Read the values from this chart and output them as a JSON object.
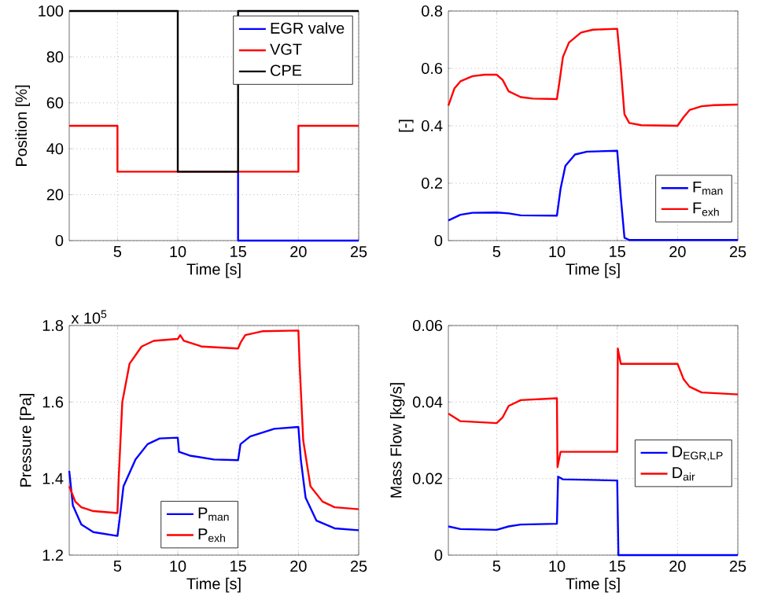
{
  "chart_data": [
    {
      "type": "line",
      "xlabel": "Time [s]",
      "ylabel": "Position [%]",
      "xlim": [
        1,
        25
      ],
      "ylim": [
        0,
        100
      ],
      "xticks": [
        5,
        10,
        15,
        20,
        25
      ],
      "yticks": [
        0,
        20,
        40,
        60,
        80,
        100
      ],
      "grid": true,
      "legend": "top right",
      "line_style": "solid",
      "series": [
        {
          "name": "EGR valve",
          "color": "#0000ff",
          "x": [
            15,
            15,
            25
          ],
          "values": [
            30,
            0,
            0
          ]
        },
        {
          "name": "VGT",
          "color": "#ff0000",
          "x": [
            1,
            5,
            5,
            20,
            20,
            25
          ],
          "values": [
            50,
            50,
            30,
            30,
            50,
            50
          ]
        },
        {
          "name": "CPE",
          "color": "#000000",
          "x": [
            1,
            10,
            10,
            15,
            15,
            25
          ],
          "values": [
            100,
            100,
            30,
            30,
            100,
            100
          ]
        }
      ]
    },
    {
      "type": "line",
      "xlabel": "Time [s]",
      "ylabel": "[-]",
      "xlim": [
        1,
        25
      ],
      "ylim": [
        0,
        0.8
      ],
      "xticks": [
        5,
        10,
        15,
        20,
        25
      ],
      "yticks": [
        0,
        0.2,
        0.4,
        0.6,
        0.8
      ],
      "grid": true,
      "legend": "bottom right",
      "line_style": "solid",
      "series": [
        {
          "name": "F$_{man}$",
          "color": "#0000ff",
          "x": [
            1,
            2,
            3,
            5,
            6,
            7,
            10,
            10.3,
            10.7,
            11.5,
            12.5,
            15,
            15.3,
            15.6,
            16,
            25
          ],
          "values": [
            0.07,
            0.09,
            0.097,
            0.098,
            0.095,
            0.088,
            0.087,
            0.18,
            0.26,
            0.3,
            0.31,
            0.313,
            0.15,
            0.01,
            0.002,
            0.002
          ]
        },
        {
          "name": "F$_{exh}$",
          "color": "#ff0000",
          "x": [
            1,
            1.5,
            2,
            3,
            4,
            5,
            5.5,
            6,
            7,
            8,
            10,
            10.2,
            10.5,
            11,
            12,
            13,
            15,
            15.3,
            15.6,
            16,
            17,
            20,
            20.5,
            21,
            22,
            23,
            25
          ],
          "values": [
            0.47,
            0.53,
            0.555,
            0.573,
            0.578,
            0.578,
            0.56,
            0.52,
            0.5,
            0.495,
            0.493,
            0.55,
            0.64,
            0.69,
            0.725,
            0.735,
            0.738,
            0.6,
            0.44,
            0.41,
            0.402,
            0.4,
            0.43,
            0.455,
            0.468,
            0.472,
            0.474
          ]
        }
      ]
    },
    {
      "type": "line",
      "xlabel": "Time [s]",
      "ylabel": "Pressure [Pa]",
      "annotations": [
        "x 10$^{5}$"
      ],
      "xlim": [
        1,
        25
      ],
      "ylim": [
        1.2,
        1.8
      ],
      "xticks": [
        5,
        10,
        15,
        20,
        25
      ],
      "yticks": [
        1.2,
        1.4,
        1.6,
        1.8
      ],
      "grid": true,
      "legend": "bottom",
      "line_style": "solid",
      "series": [
        {
          "name": "P$_{man}$",
          "color": "#0000ff",
          "x": [
            1,
            1.3,
            2,
            3,
            5,
            5.2,
            5.5,
            6.5,
            7.5,
            8.5,
            10,
            10.1,
            11,
            13,
            15,
            15.2,
            16,
            18,
            20,
            20.2,
            20.6,
            21.5,
            23,
            25
          ],
          "values": [
            1.42,
            1.33,
            1.28,
            1.26,
            1.25,
            1.3,
            1.38,
            1.45,
            1.49,
            1.505,
            1.507,
            1.47,
            1.46,
            1.45,
            1.448,
            1.49,
            1.51,
            1.53,
            1.535,
            1.45,
            1.35,
            1.29,
            1.27,
            1.265
          ]
        },
        {
          "name": "P$_{exh}$",
          "color": "#ff0000",
          "x": [
            1,
            1.5,
            2,
            3,
            5,
            5.1,
            5.4,
            6,
            7,
            8,
            10,
            10.2,
            10.5,
            12,
            15,
            15.2,
            15.6,
            17,
            20,
            20.1,
            20.4,
            21,
            22,
            23,
            25
          ],
          "values": [
            1.38,
            1.34,
            1.325,
            1.315,
            1.31,
            1.4,
            1.6,
            1.7,
            1.745,
            1.76,
            1.765,
            1.775,
            1.76,
            1.745,
            1.74,
            1.755,
            1.775,
            1.785,
            1.787,
            1.7,
            1.5,
            1.38,
            1.34,
            1.325,
            1.32
          ]
        }
      ]
    },
    {
      "type": "line",
      "xlabel": "Time [s]",
      "ylabel": "Mass Flow [kg/s]",
      "xlim": [
        1,
        25
      ],
      "ylim": [
        0,
        0.06
      ],
      "xticks": [
        5,
        10,
        15,
        20,
        25
      ],
      "yticks": [
        0,
        0.02,
        0.04,
        0.06
      ],
      "grid": true,
      "legend": "right",
      "line_style": "solid",
      "series": [
        {
          "name": "D$_{EGR,LP}$",
          "color": "#0000ff",
          "x": [
            1,
            2,
            5,
            6,
            7,
            10,
            10.1,
            10.5,
            15,
            15.1,
            25
          ],
          "values": [
            0.0075,
            0.0068,
            0.0066,
            0.0075,
            0.008,
            0.0082,
            0.0205,
            0.0198,
            0.0195,
            0,
            0
          ]
        },
        {
          "name": "D$_{air}$",
          "color": "#ff0000",
          "x": [
            1,
            2,
            5,
            5.5,
            6,
            7,
            10,
            10.05,
            10.3,
            15,
            15.05,
            15.3,
            20,
            20.5,
            21,
            22,
            25
          ],
          "values": [
            0.037,
            0.035,
            0.0345,
            0.036,
            0.039,
            0.0405,
            0.041,
            0.023,
            0.027,
            0.027,
            0.054,
            0.05,
            0.05,
            0.046,
            0.044,
            0.0425,
            0.042
          ]
        }
      ]
    }
  ]
}
